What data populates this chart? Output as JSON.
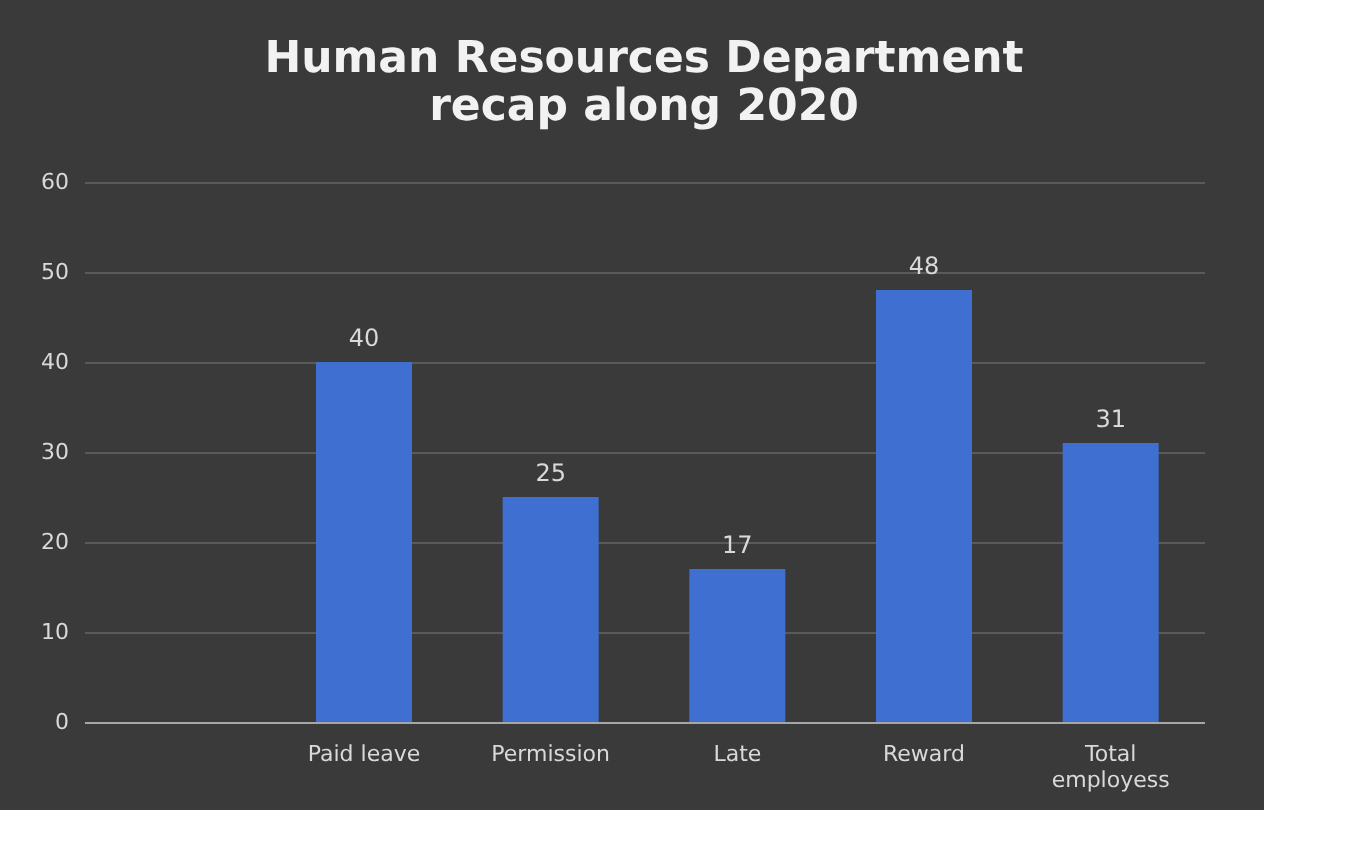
{
  "chart_data": {
    "type": "bar",
    "title": "Human Resources Department recap along 2020",
    "categories": [
      null,
      "Paid leave",
      "Permission",
      "Late",
      "Reward",
      "Total employess"
    ],
    "values": [
      null,
      40,
      25,
      17,
      48,
      31
    ],
    "color": "#3f6fd0",
    "ylim": [
      0,
      60
    ],
    "yticks": [
      0,
      10,
      20,
      30,
      40,
      50,
      60
    ],
    "grid": "y",
    "data_labels": true
  }
}
